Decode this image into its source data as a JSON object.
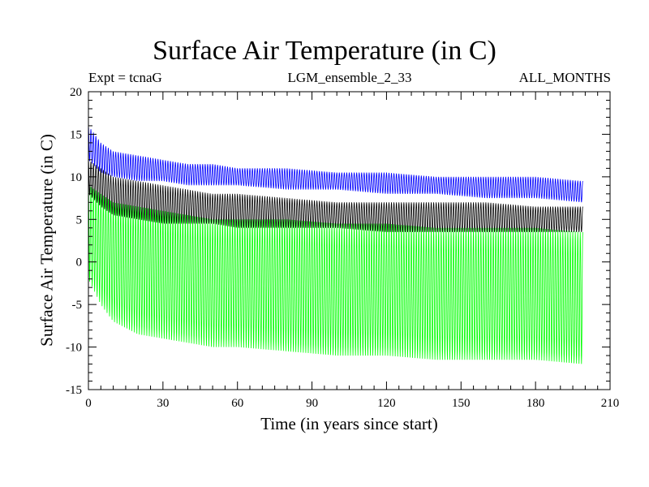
{
  "chart_data": {
    "type": "line",
    "title": "Surface Air Temperature (in C)",
    "subtitle_left": "Expt = tcnaG",
    "subtitle_center": "LGM_ensemble_2_33",
    "subtitle_right": "ALL_MONTHS",
    "xlabel": "Time (in years since start)",
    "ylabel": "Surface Air Temperature (in C)",
    "xlim": [
      0,
      210
    ],
    "ylim": [
      -15,
      20
    ],
    "xticks": [
      0,
      30,
      60,
      90,
      120,
      150,
      180,
      210
    ],
    "yticks": [
      -15,
      -10,
      -5,
      0,
      5,
      10,
      15,
      20
    ],
    "grid": false,
    "series": [
      {
        "name": "green",
        "color": "#00ff00",
        "x": [
          0,
          5,
          10,
          20,
          30,
          40,
          50,
          60,
          80,
          100,
          120,
          140,
          160,
          180,
          199
        ],
        "max": [
          9,
          8,
          7,
          6.5,
          6,
          5.5,
          5,
          5,
          5,
          4.5,
          4.5,
          4,
          4,
          4,
          3.5
        ],
        "min": [
          -2,
          -5,
          -7,
          -8.5,
          -9,
          -9.5,
          -10,
          -10,
          -10.5,
          -11,
          -11,
          -11.5,
          -11.5,
          -11.5,
          -12
        ]
      },
      {
        "name": "black",
        "color": "#000000",
        "x": [
          0,
          5,
          10,
          20,
          30,
          40,
          50,
          60,
          80,
          100,
          120,
          140,
          160,
          180,
          199
        ],
        "max": [
          12,
          11,
          10,
          9.5,
          9,
          8.5,
          8,
          8,
          7.5,
          7,
          7,
          7,
          7,
          6.5,
          6.5
        ],
        "min": [
          8,
          6.5,
          5.5,
          5,
          4.5,
          4.5,
          4.5,
          4,
          4,
          4,
          3.5,
          3.5,
          3.5,
          3.5,
          3.5
        ]
      },
      {
        "name": "blue",
        "color": "#0000ff",
        "x": [
          0,
          5,
          10,
          20,
          30,
          40,
          50,
          60,
          80,
          100,
          120,
          140,
          160,
          180,
          199
        ],
        "max": [
          16,
          14,
          13,
          12.5,
          12,
          11.5,
          11.5,
          11,
          11,
          10.5,
          10.5,
          10,
          10,
          10,
          9.5
        ],
        "min": [
          12,
          10.5,
          10,
          9.5,
          9.5,
          9,
          9,
          9,
          8.5,
          8.5,
          8,
          8,
          7.5,
          7.5,
          7
        ]
      }
    ]
  }
}
